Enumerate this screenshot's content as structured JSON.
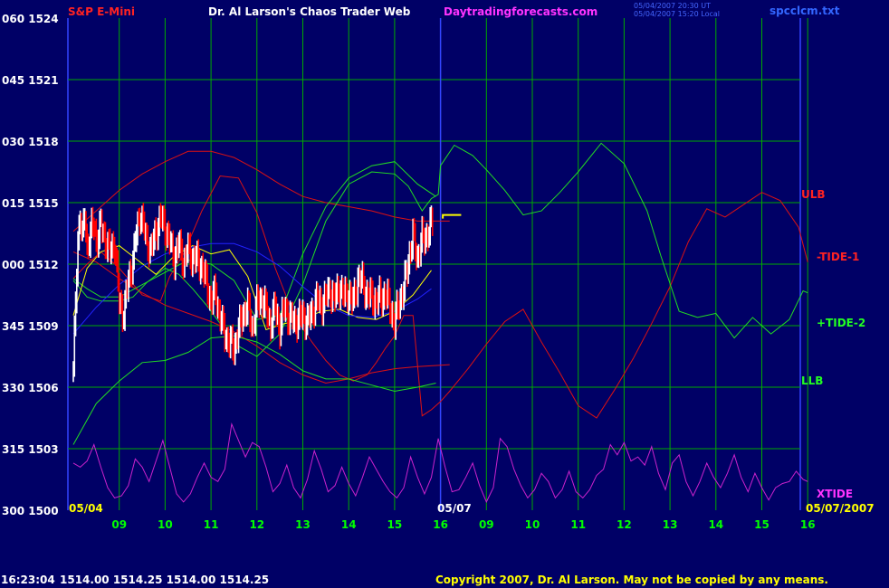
{
  "chart_data": {
    "type": "line",
    "header": {
      "instrument": "S&P E-Mini",
      "title": "Dr. Al Larson's Chaos Trader Web",
      "website": "Daytradingforecasts.com",
      "stamp1": "05/04/2007 20:30 UT",
      "stamp2": "05/04/2007 15:20 Local",
      "file": "spcclcm.txt"
    },
    "y_ticks": [
      {
        "left": "060",
        "price": "1524"
      },
      {
        "left": "045",
        "price": "1521"
      },
      {
        "left": "030",
        "price": "1518"
      },
      {
        "left": "015",
        "price": "1515"
      },
      {
        "left": "000",
        "price": "1512"
      },
      {
        "left": "345",
        "price": "1509"
      },
      {
        "left": "330",
        "price": "1506"
      },
      {
        "left": "315",
        "price": "1503"
      },
      {
        "left": "300",
        "price": "1500"
      }
    ],
    "ylim": [
      1500,
      1524
    ],
    "x_ticks": [
      "09",
      "10",
      "11",
      "12",
      "13",
      "14",
      "15",
      "16",
      "09",
      "10",
      "11",
      "12",
      "13",
      "14",
      "15",
      "16"
    ],
    "date_labels": {
      "day1": "05/04",
      "day2": "05/07",
      "right": "05/07/2007"
    },
    "series_labels": {
      "ulb": "ULB",
      "tide1": "-TIDE-1",
      "tide2": "+TIDE-2",
      "llb": "LLB",
      "xtide": "XTIDE"
    },
    "colors": {
      "background": "#000066",
      "grid": "#00aa00",
      "price_up": "#ffffff",
      "price_down": "#ff0000",
      "tide1": "#dd1111",
      "tide2": "#22dd22",
      "xtide": "#cc22cc",
      "average": "#ffff00",
      "cycle": "#2222ff"
    },
    "series": [
      {
        "name": "-TIDE-1",
        "color": "#dd1111",
        "x": [
          0,
          0.3,
          0.6,
          1,
          1.5,
          1.9,
          2.1,
          2.4,
          2.8,
          3.2,
          3.6,
          4,
          4.4,
          4.8,
          5.2,
          5.5,
          5.8,
          6.1,
          6.4,
          6.6,
          6.8,
          7,
          7.2,
          7.4,
          7.6,
          7.8,
          8,
          8.2,
          8.6,
          9,
          9.4,
          9.8,
          10.2,
          10.6,
          11,
          11.4,
          11.8,
          12.2,
          12.6,
          13,
          13.4,
          13.8,
          14.2,
          14.6,
          15,
          15.4,
          15.8,
          16
        ],
        "y": [
          1511.3,
          1512,
          1512.6,
          1511.8,
          1510.5,
          1510.2,
          1511.4,
          1512.5,
          1514.6,
          1516.3,
          1516.2,
          1514.5,
          1511.8,
          1509.5,
          1508.2,
          1507.3,
          1506.6,
          1506.3,
          1506.6,
          1507.2,
          1507.9,
          1508.5,
          1509.5,
          1509.5,
          1504.6,
          1504.9,
          1505.3,
          1505.8,
          1506.9,
          1508.1,
          1509.2,
          1509.8,
          1508.2,
          1506.7,
          1505.1,
          1504.5,
          1505.9,
          1507.4,
          1509.1,
          1510.9,
          1513.1,
          1514.7,
          1514.3,
          1514.9,
          1515.5,
          1515.1,
          1513.8,
          1512.1
        ]
      },
      {
        "name": "ULB",
        "color": "#dd1111",
        "x": [
          0,
          0.5,
          1,
          1.5,
          2,
          2.5,
          3,
          3.5,
          4,
          4.5,
          5,
          5.5,
          6,
          6.5,
          7,
          7.5,
          8.2
        ],
        "y": [
          1513.6,
          1514.6,
          1515.6,
          1516.4,
          1517,
          1517.5,
          1517.5,
          1517.2,
          1516.6,
          1515.9,
          1515.3,
          1515,
          1514.8,
          1514.6,
          1514.3,
          1514.1,
          1514.1
        ]
      },
      {
        "name": "LLB",
        "color": "#dd1111",
        "x": [
          0,
          0.5,
          1,
          1.5,
          2,
          2.5,
          3,
          3.5,
          4,
          4.5,
          5,
          5.5,
          6,
          6.5,
          7,
          7.5,
          8.2
        ],
        "y": [
          1512.6,
          1512.1,
          1511.3,
          1510.6,
          1510,
          1509.6,
          1509.2,
          1508.7,
          1508,
          1507.2,
          1506.6,
          1506.2,
          1506.4,
          1506.7,
          1506.9,
          1507,
          1507.1
        ]
      },
      {
        "name": "+TIDE-2",
        "color": "#22dd22",
        "x": [
          0,
          0.3,
          0.6,
          1,
          1.3,
          1.6,
          2,
          2.3,
          2.6,
          2.9,
          3.2,
          3.6,
          4,
          4.5,
          5,
          5.5,
          6,
          6.5,
          7,
          7.3,
          7.6,
          7.8,
          7.95,
          8,
          8.3,
          8.7,
          9,
          9.4,
          9.8,
          10.2,
          10.6,
          11,
          11.5,
          12,
          12.5,
          12.8,
          13.2,
          13.6,
          14,
          14.4,
          14.8,
          15.2,
          15.6,
          15.9,
          16
        ],
        "y": [
          1511.2,
          1510.4,
          1510.2,
          1510.2,
          1510.4,
          1511.1,
          1511.8,
          1511.5,
          1510.8,
          1510,
          1509.1,
          1508,
          1507.5,
          1508.6,
          1511,
          1514.1,
          1515.9,
          1516.5,
          1516.4,
          1515.8,
          1514.6,
          1515.2,
          1515.4,
          1516.8,
          1517.8,
          1517.3,
          1516.6,
          1515.6,
          1514.4,
          1514.6,
          1515.5,
          1516.5,
          1517.9,
          1516.9,
          1514.6,
          1512.4,
          1509.7,
          1509.4,
          1509.6,
          1508.4,
          1509.4,
          1508.6,
          1509.3,
          1510.7,
          1510.6
        ]
      },
      {
        "name": "Upper envelope",
        "color": "#22dd22",
        "x": [
          0,
          0.3,
          0.6,
          1,
          1.5,
          2,
          2.5,
          3,
          3.5,
          4,
          4.5,
          5,
          5.5,
          6,
          6.5,
          7,
          7.5,
          7.9
        ],
        "y": [
          1511.3,
          1510.8,
          1510.4,
          1510.4,
          1511,
          1511.6,
          1512.2,
          1512,
          1511.2,
          1509.3,
          1509.5,
          1512.5,
          1514.8,
          1516.2,
          1516.8,
          1517,
          1515.9,
          1515.3
        ]
      },
      {
        "name": "Lower envelope",
        "color": "#22dd22",
        "x": [
          0,
          0.5,
          1,
          1.5,
          2,
          2.5,
          3,
          3.5,
          4,
          4.5,
          5,
          5.5,
          6,
          6.5,
          7,
          7.5,
          7.9
        ],
        "y": [
          1503.2,
          1505.2,
          1506.3,
          1507.2,
          1507.3,
          1507.7,
          1508.4,
          1508.5,
          1508.2,
          1507.6,
          1506.8,
          1506.4,
          1506.4,
          1506.1,
          1505.8,
          1506,
          1506.2
        ]
      },
      {
        "name": "XTIDE",
        "color": "#cc22cc",
        "x": [
          0,
          0.15,
          0.3,
          0.45,
          0.6,
          0.75,
          0.9,
          1.05,
          1.2,
          1.35,
          1.5,
          1.65,
          1.8,
          1.95,
          2.1,
          2.25,
          2.4,
          2.55,
          2.7,
          2.85,
          3,
          3.15,
          3.3,
          3.45,
          3.6,
          3.75,
          3.9,
          4.05,
          4.2,
          4.35,
          4.5,
          4.65,
          4.8,
          4.95,
          5.1,
          5.25,
          5.4,
          5.55,
          5.7,
          5.85,
          6,
          6.15,
          6.3,
          6.45,
          6.6,
          6.75,
          6.9,
          7.05,
          7.2,
          7.35,
          7.5,
          7.65,
          7.8,
          7.95,
          8.1,
          8.25,
          8.4,
          8.55,
          8.7,
          8.85,
          9,
          9.15,
          9.3,
          9.45,
          9.6,
          9.75,
          9.9,
          10.05,
          10.2,
          10.35,
          10.5,
          10.65,
          10.8,
          10.95,
          11.1,
          11.25,
          11.4,
          11.55,
          11.7,
          11.85,
          12,
          12.15,
          12.3,
          12.45,
          12.6,
          12.75,
          12.9,
          13.05,
          13.2,
          13.35,
          13.5,
          13.65,
          13.8,
          13.95,
          14.1,
          14.25,
          14.4,
          14.55,
          14.7,
          14.85,
          15,
          15.15,
          15.3,
          15.45,
          15.6,
          15.75,
          15.9,
          16
        ],
        "y": [
          1502.3,
          1502.1,
          1502.4,
          1503.2,
          1502.1,
          1501.1,
          1500.6,
          1500.7,
          1501.2,
          1502.5,
          1502.1,
          1501.4,
          1502.4,
          1503.4,
          1502.1,
          1500.8,
          1500.4,
          1500.8,
          1501.6,
          1502.3,
          1501.6,
          1501.4,
          1502,
          1504.2,
          1503.4,
          1502.6,
          1503.3,
          1503.1,
          1502.1,
          1500.9,
          1501.3,
          1502.2,
          1501.1,
          1500.6,
          1501.5,
          1502.9,
          1502,
          1500.9,
          1501.2,
          1502.1,
          1501.3,
          1500.7,
          1501.6,
          1502.6,
          1502,
          1501.4,
          1500.9,
          1500.6,
          1501.1,
          1502.6,
          1501.6,
          1500.8,
          1501.6,
          1503.5,
          1502.1,
          1500.9,
          1501,
          1501.6,
          1502.3,
          1501.2,
          1500.4,
          1501.1,
          1503.5,
          1503.1,
          1502,
          1501.2,
          1500.6,
          1501,
          1501.8,
          1501.4,
          1500.6,
          1501,
          1501.9,
          1500.9,
          1500.6,
          1501,
          1501.7,
          1502,
          1503.2,
          1502.7,
          1503.3,
          1502.4,
          1502.6,
          1502.2,
          1503.1,
          1501.8,
          1501,
          1502.3,
          1502.7,
          1501.4,
          1500.7,
          1501.4,
          1502.3,
          1501.6,
          1501.1,
          1501.8,
          1502.7,
          1501.6,
          1500.9,
          1501.8,
          1501.1,
          1500.5,
          1501.1,
          1501.3,
          1501.4,
          1501.9,
          1501.5,
          1501.4
        ]
      },
      {
        "name": "Average",
        "color": "#ffff00",
        "x": [
          0,
          0.3,
          0.6,
          1,
          1.4,
          1.8,
          2.2,
          2.6,
          3,
          3.4,
          3.8,
          4.2,
          4.6,
          5,
          5.4,
          5.8,
          6.2,
          6.6,
          7,
          7.4,
          7.8
        ],
        "y": [
          1509.5,
          1511.8,
          1512.6,
          1512.9,
          1512.2,
          1511.5,
          1512.4,
          1512.9,
          1512.5,
          1512.7,
          1511.4,
          1508.8,
          1509.1,
          1509.3,
          1509.7,
          1509.8,
          1509.4,
          1509.3,
          1509.7,
          1510.5,
          1511.7
        ]
      },
      {
        "name": "Cycle",
        "color": "#2222ff",
        "x": [
          0,
          0.5,
          1,
          1.5,
          2,
          2.5,
          3,
          3.5,
          4,
          4.5,
          5,
          5.5,
          6,
          6.5,
          7,
          7.5,
          7.8
        ],
        "y": [
          1508.6,
          1509.9,
          1511,
          1511.9,
          1512.5,
          1512.8,
          1513,
          1513,
          1512.6,
          1511.9,
          1510.9,
          1510,
          1509.5,
          1509.4,
          1509.7,
          1510.3,
          1510.8
        ]
      }
    ],
    "price_path": {
      "x": [
        0,
        0.1,
        0.15,
        0.2,
        0.25,
        0.3,
        0.35,
        0.4,
        0.45,
        0.5,
        0.55,
        0.6,
        0.7,
        0.8,
        0.9,
        1,
        1.1,
        1.2,
        1.3,
        1.4,
        1.45,
        1.5,
        1.6,
        1.7,
        1.8,
        1.9,
        2,
        2.1,
        2.2,
        2.3,
        2.4,
        2.5,
        2.6,
        2.7,
        2.8,
        2.9,
        3,
        3.1,
        3.2,
        3.3,
        3.4,
        3.5,
        3.6,
        3.7,
        3.8,
        3.9,
        4,
        4.1,
        4.2,
        4.3,
        4.4,
        4.5,
        4.6,
        4.7,
        4.8,
        4.9,
        5,
        5.1,
        5.2,
        5.3,
        5.4,
        5.5,
        5.6,
        5.7,
        5.8,
        5.9,
        6,
        6.1,
        6.2,
        6.3,
        6.4,
        6.5,
        6.6,
        6.7,
        6.8,
        6.9,
        7,
        7.1,
        7.2,
        7.3,
        7.4,
        7.5,
        7.6,
        7.7,
        7.8,
        7.85
      ],
      "y": [
        1506.8,
        1513.2,
        1514.5,
        1513.2,
        1514.4,
        1512.8,
        1513.3,
        1513.7,
        1513.9,
        1513.2,
        1513.4,
        1513.9,
        1513.2,
        1512.6,
        1513.1,
        1510.2,
        1509.6,
        1511.2,
        1512.2,
        1513.9,
        1514.5,
        1514.1,
        1513.1,
        1512.7,
        1513.6,
        1514.3,
        1513.8,
        1513.1,
        1512.3,
        1513.0,
        1512.1,
        1512.7,
        1512.3,
        1512.2,
        1511.9,
        1511.1,
        1510.2,
        1510.6,
        1509.4,
        1508.6,
        1508.2,
        1507.9,
        1508.8,
        1509.6,
        1509.9,
        1508.9,
        1510.0,
        1510.4,
        1509.8,
        1509.1,
        1509.9,
        1508.9,
        1509.9,
        1509.4,
        1509.2,
        1509.3,
        1509.5,
        1509.2,
        1509.6,
        1510.3,
        1510.0,
        1510.4,
        1510.7,
        1510.3,
        1510.9,
        1510.4,
        1510.6,
        1510.1,
        1511.3,
        1511.1,
        1510.5,
        1510.4,
        1510.2,
        1510.4,
        1510.5,
        1510.0,
        1509.1,
        1510.2,
        1510.7,
        1512.2,
        1513.3,
        1512.3,
        1513.2,
        1513.4,
        1513.9,
        1514.2
      ]
    },
    "pattern_start": 8.05,
    "pattern_end": 8.45,
    "pattern_level": 1514.4
  },
  "footer": {
    "time": "16:23:04",
    "quote": "1514.00 1514.25 1514.00 1514.25",
    "copyright": "Copyright 2007, Dr. Al Larson. May not be copied by any means."
  }
}
